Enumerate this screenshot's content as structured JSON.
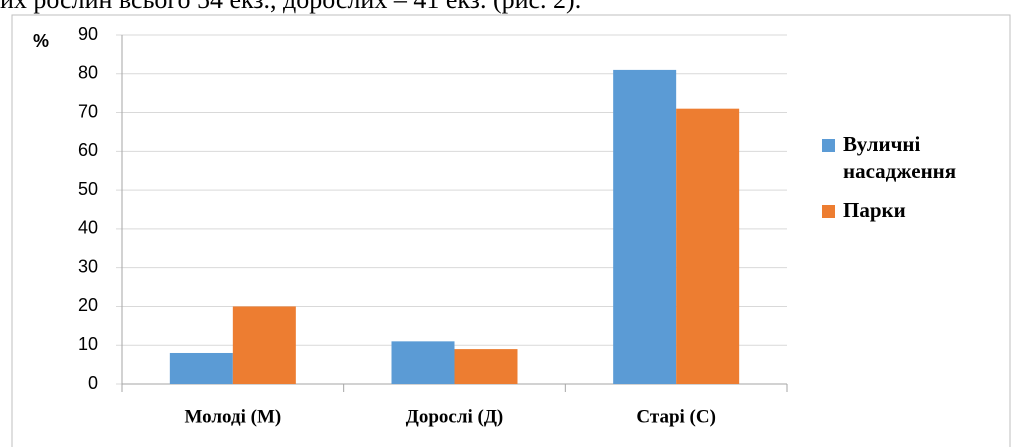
{
  "document_text": "их рослин всього 54 екз., дорослих – 41 екз. (рис. 2).",
  "chart_data": {
    "type": "bar",
    "y_label": "%",
    "categories": [
      "Молоді (М)",
      "Дорослі (Д)",
      "Старі (С)"
    ],
    "series": [
      {
        "name": "Вуличні насадження",
        "color": "#5b9bd5",
        "values": [
          8,
          11,
          81
        ]
      },
      {
        "name": "Парки",
        "color": "#ed7d31",
        "values": [
          20,
          9,
          71
        ]
      }
    ],
    "ylim": [
      0,
      90
    ],
    "yticks": [
      0,
      10,
      20,
      30,
      40,
      50,
      60,
      70,
      80,
      90
    ],
    "grid": true,
    "legend": "right"
  }
}
